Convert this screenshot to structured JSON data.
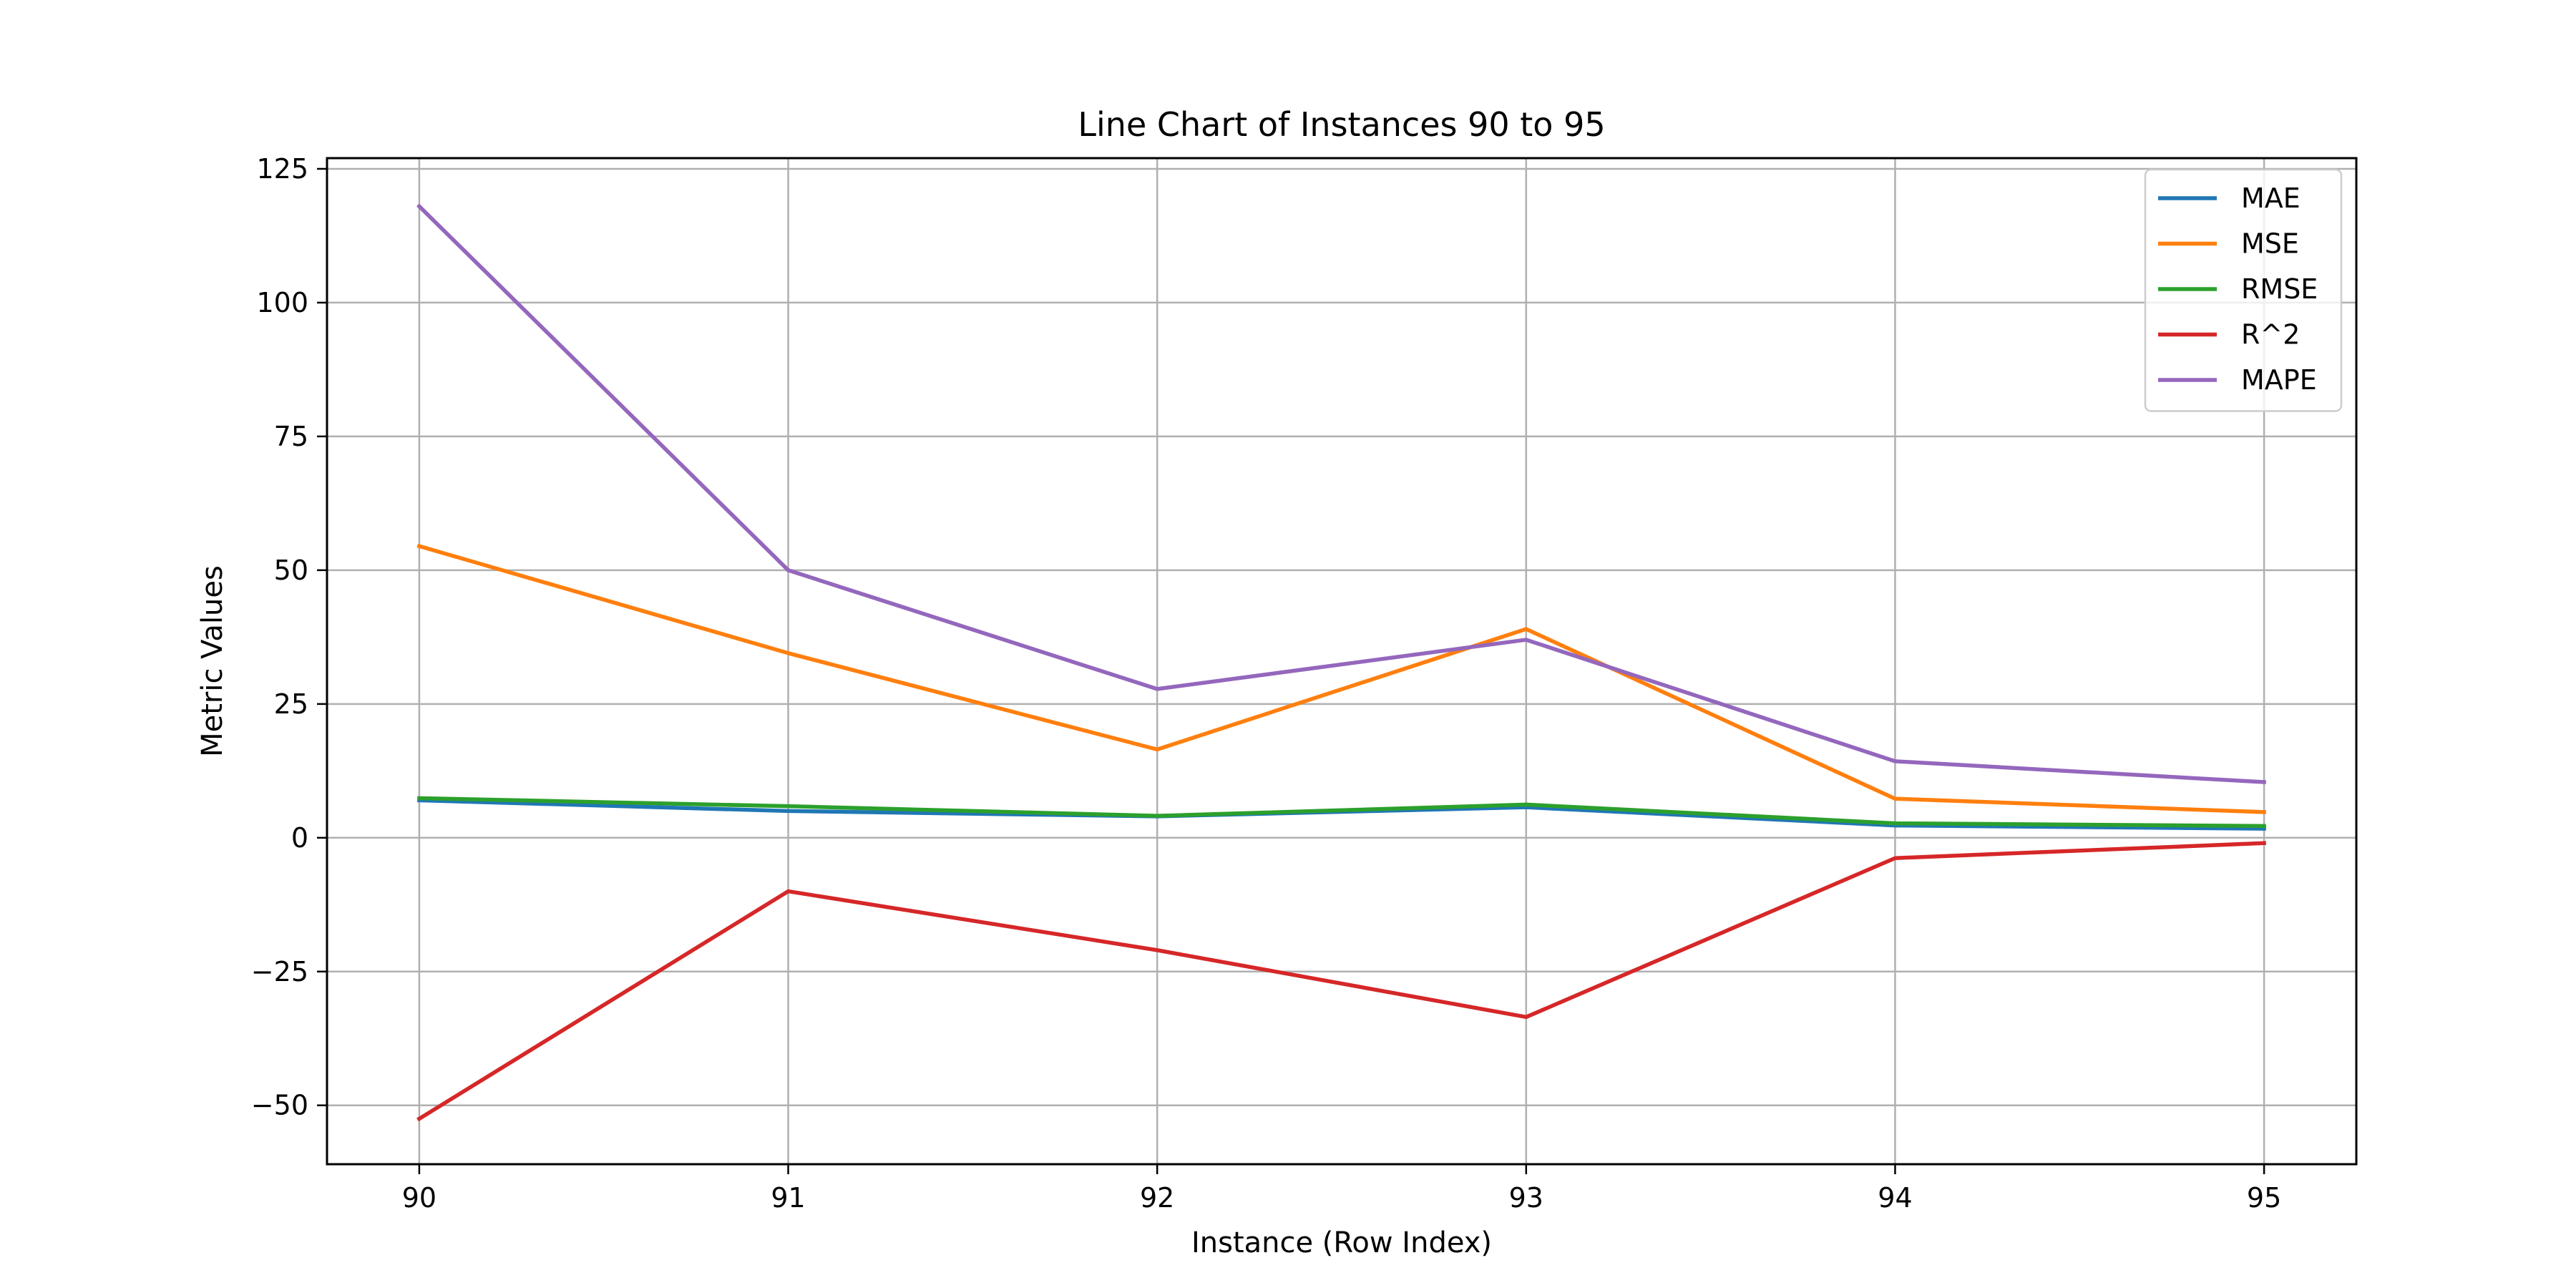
{
  "chart_data": {
    "type": "line",
    "title": "Line Chart of Instances 90 to 95",
    "xlabel": "Instance (Row Index)",
    "ylabel": "Metric Values",
    "x": [
      90,
      91,
      92,
      93,
      94,
      95
    ],
    "xlim": [
      89.75,
      95.25
    ],
    "ylim": [
      -61,
      127
    ],
    "xticks": [
      90,
      91,
      92,
      93,
      94,
      95
    ],
    "yticks": [
      -50,
      -25,
      0,
      25,
      50,
      75,
      100,
      125
    ],
    "ytick_labels": [
      "−50",
      "−25",
      "0",
      "25",
      "50",
      "75",
      "100",
      "125"
    ],
    "grid": true,
    "legend_position": "upper-right",
    "series": [
      {
        "name": "MAE",
        "color": "#1f77b4",
        "values": [
          7.0,
          5.0,
          4.0,
          5.7,
          2.3,
          1.7
        ]
      },
      {
        "name": "MSE",
        "color": "#ff7f0e",
        "values": [
          54.5,
          34.5,
          16.5,
          39.0,
          7.3,
          4.8
        ]
      },
      {
        "name": "RMSE",
        "color": "#2ca02c",
        "values": [
          7.4,
          5.9,
          4.1,
          6.2,
          2.7,
          2.2
        ]
      },
      {
        "name": "R^2",
        "color": "#d62728",
        "values": [
          -52.5,
          -10.0,
          -21.0,
          -33.5,
          -3.8,
          -1.0
        ]
      },
      {
        "name": "MAPE",
        "color": "#9467bd",
        "values": [
          118.0,
          50.0,
          27.8,
          37.0,
          14.3,
          10.4
        ]
      }
    ]
  }
}
